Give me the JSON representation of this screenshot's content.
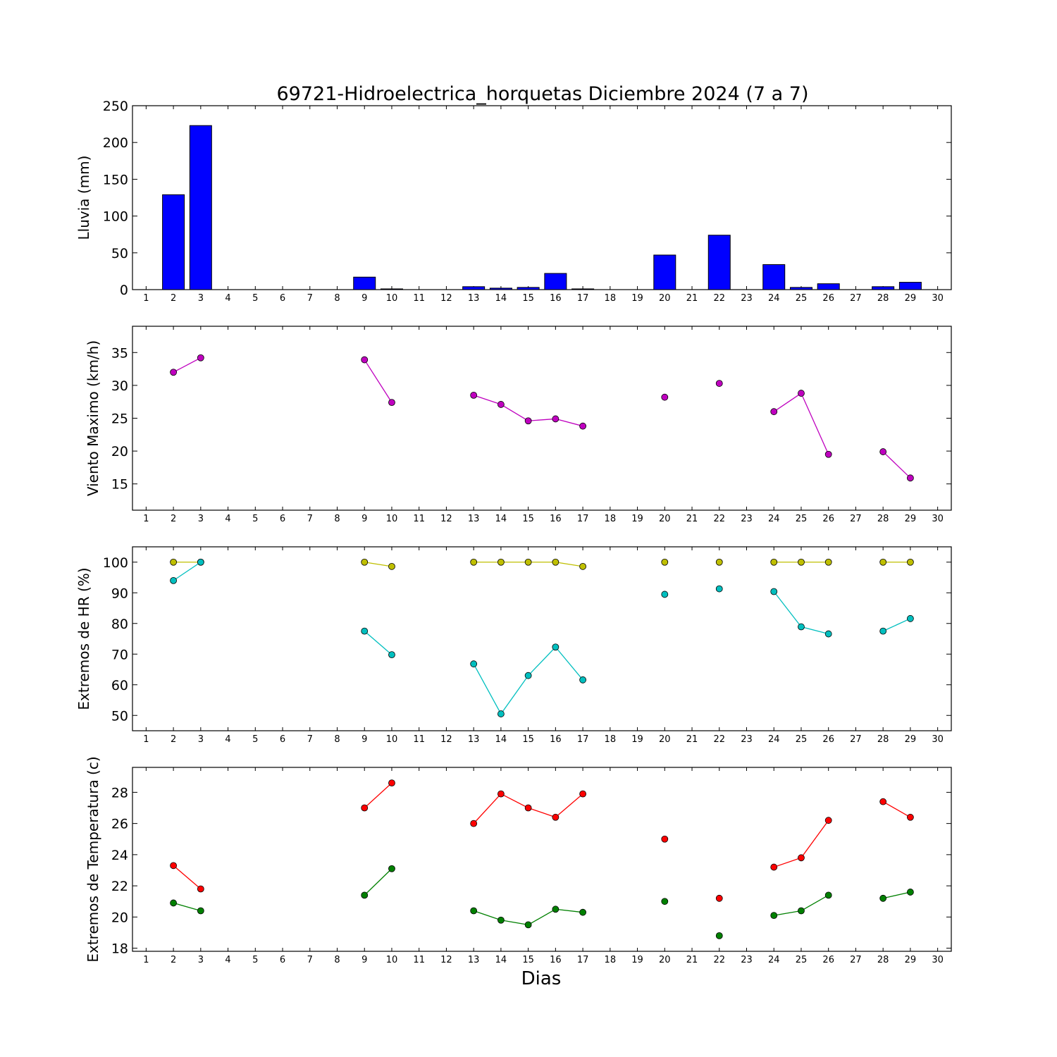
{
  "chart_data": {
    "title": "69721-Hidroelectrica_horquetas Diciembre 2024  (7 a 7)",
    "xlabel": "Dias",
    "x_ticks": [
      1,
      2,
      3,
      4,
      5,
      6,
      7,
      8,
      9,
      10,
      11,
      12,
      13,
      14,
      15,
      16,
      17,
      18,
      19,
      20,
      21,
      22,
      23,
      24,
      25,
      26,
      27,
      28,
      29,
      30
    ],
    "xlim": [
      0.5,
      30.5
    ],
    "panels": [
      {
        "type": "bar",
        "ylabel": "Lluvia (mm)",
        "ylim": [
          0,
          250
        ],
        "yticks": [
          0,
          50,
          100,
          150,
          200,
          250
        ],
        "series": [
          {
            "color": "#0000ff",
            "x": [
              2,
              3,
              9,
              10,
              13,
              14,
              15,
              16,
              17,
              20,
              22,
              24,
              25,
              26,
              28,
              29
            ],
            "values": [
              129,
              223,
              17,
              1,
              4,
              2,
              3,
              22,
              1,
              47,
              74,
              34,
              3,
              8,
              4,
              10
            ]
          }
        ]
      },
      {
        "type": "line",
        "ylabel": "Viento Maximo (km/h)",
        "ylim": [
          11,
          39
        ],
        "yticks": [
          15,
          20,
          25,
          30,
          35
        ],
        "series": [
          {
            "color": "#bf00bf",
            "x": [
              2,
              3,
              9,
              10,
              13,
              14,
              15,
              16,
              17,
              20,
              22,
              24,
              25,
              26,
              28,
              29
            ],
            "values": [
              32.0,
              34.2,
              33.9,
              27.4,
              28.5,
              27.1,
              24.6,
              24.9,
              23.8,
              28.2,
              30.3,
              26.0,
              28.8,
              19.5,
              19.9,
              15.9
            ]
          }
        ]
      },
      {
        "type": "line",
        "ylabel": "Extremos de HR (%)",
        "ylim": [
          45,
          105
        ],
        "yticks": [
          50,
          60,
          70,
          80,
          90,
          100
        ],
        "series": [
          {
            "color": "#bfbf00",
            "x": [
              2,
              3,
              9,
              10,
              13,
              14,
              15,
              16,
              17,
              20,
              22,
              24,
              25,
              26,
              28,
              29
            ],
            "values": [
              100,
              100,
              100,
              98.6,
              100,
              100,
              100,
              100,
              98.6,
              100,
              100,
              100,
              100,
              100,
              100,
              100
            ]
          },
          {
            "color": "#00bfbf",
            "x": [
              2,
              3,
              9,
              10,
              13,
              14,
              15,
              16,
              17,
              20,
              22,
              24,
              25,
              26,
              28,
              29
            ],
            "values": [
              94,
              100,
              77.5,
              69.8,
              66.8,
              50.5,
              63,
              72.3,
              61.6,
              89.5,
              91.3,
              90.4,
              78.9,
              76.6,
              77.5,
              81.6
            ]
          }
        ]
      },
      {
        "type": "line",
        "ylabel": "Extremos de Temperatura (c)",
        "ylim": [
          17.8,
          29.6
        ],
        "yticks": [
          18,
          20,
          22,
          24,
          26,
          28
        ],
        "series": [
          {
            "color": "#ff0000",
            "x": [
              2,
              3,
              9,
              10,
              13,
              14,
              15,
              16,
              17,
              20,
              22,
              24,
              25,
              26,
              28,
              29
            ],
            "values": [
              23.3,
              21.8,
              27.0,
              28.6,
              26.0,
              27.9,
              27.0,
              26.4,
              27.9,
              25.0,
              21.2,
              23.2,
              23.8,
              26.2,
              27.4,
              26.4
            ]
          },
          {
            "color": "#008000",
            "x": [
              2,
              3,
              9,
              10,
              13,
              14,
              15,
              16,
              17,
              20,
              22,
              24,
              25,
              26,
              28,
              29
            ],
            "values": [
              20.9,
              20.4,
              21.4,
              23.1,
              20.4,
              19.8,
              19.5,
              20.5,
              20.3,
              21.0,
              18.8,
              20.1,
              20.4,
              21.4,
              21.2,
              21.6
            ]
          }
        ]
      }
    ]
  }
}
